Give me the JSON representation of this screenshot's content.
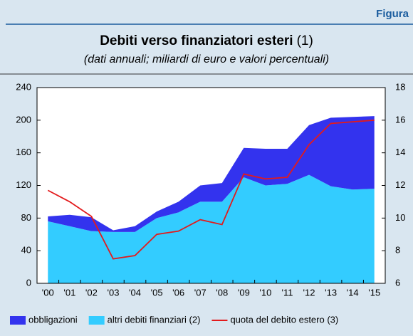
{
  "header": "Figura",
  "chart_data": {
    "type": "stacked_area_line",
    "title": "Debiti verso finanziatori esteri",
    "title_note": "(1)",
    "subtitle": "(dati annuali; miliardi di euro e valori percentuali)",
    "categories": [
      "'00",
      "'01",
      "'02",
      "'03",
      "'04",
      "'05",
      "'06",
      "'07",
      "'08",
      "'09",
      "'10",
      "'11",
      "'12",
      "'13",
      "'14",
      "'15"
    ],
    "series": [
      {
        "name": "altri debiti finanziari (2)",
        "color": "#33ccff",
        "values": [
          76,
          70,
          64,
          63,
          63,
          80,
          87,
          100,
          100,
          130,
          120,
          122,
          133,
          119,
          115,
          116
        ]
      },
      {
        "name": "obbligazioni",
        "color": "#3333ee",
        "values": [
          6,
          14,
          17,
          2,
          7,
          8,
          13,
          20,
          23,
          36,
          45,
          43,
          61,
          84,
          89,
          89
        ]
      },
      {
        "name": "quota del debito estero (3)",
        "color": "#e31a1c",
        "axis": "y2",
        "values": [
          11.7,
          11.0,
          10.1,
          7.5,
          7.7,
          9.0,
          9.2,
          9.9,
          9.6,
          12.7,
          12.4,
          12.5,
          14.5,
          15.8,
          15.9,
          16.0
        ]
      }
    ],
    "ylim": [
      0,
      240
    ],
    "yticks": [
      0,
      40,
      80,
      120,
      160,
      200,
      240
    ],
    "y2lim": [
      6,
      18
    ],
    "y2ticks": [
      6,
      8,
      10,
      12,
      14,
      16,
      18
    ],
    "grid": false,
    "legend": "bottom"
  }
}
